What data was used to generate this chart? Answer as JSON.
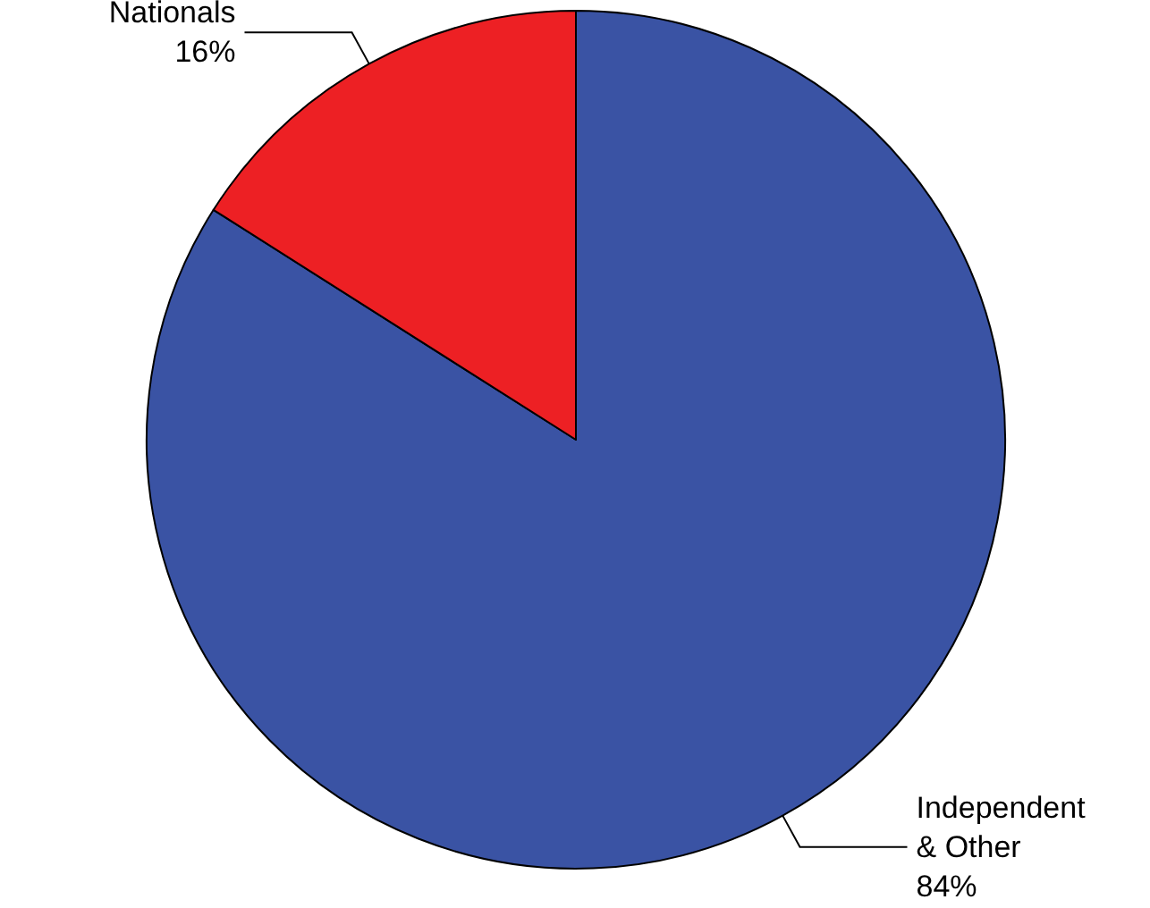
{
  "chart_data": {
    "type": "pie",
    "categories": [
      "Independent & Other",
      "Nationals"
    ],
    "values": [
      84,
      16
    ],
    "value_labels": [
      "84%",
      "16%"
    ],
    "colors": [
      "#3a53a4",
      "#ed2024"
    ],
    "legend": false
  }
}
